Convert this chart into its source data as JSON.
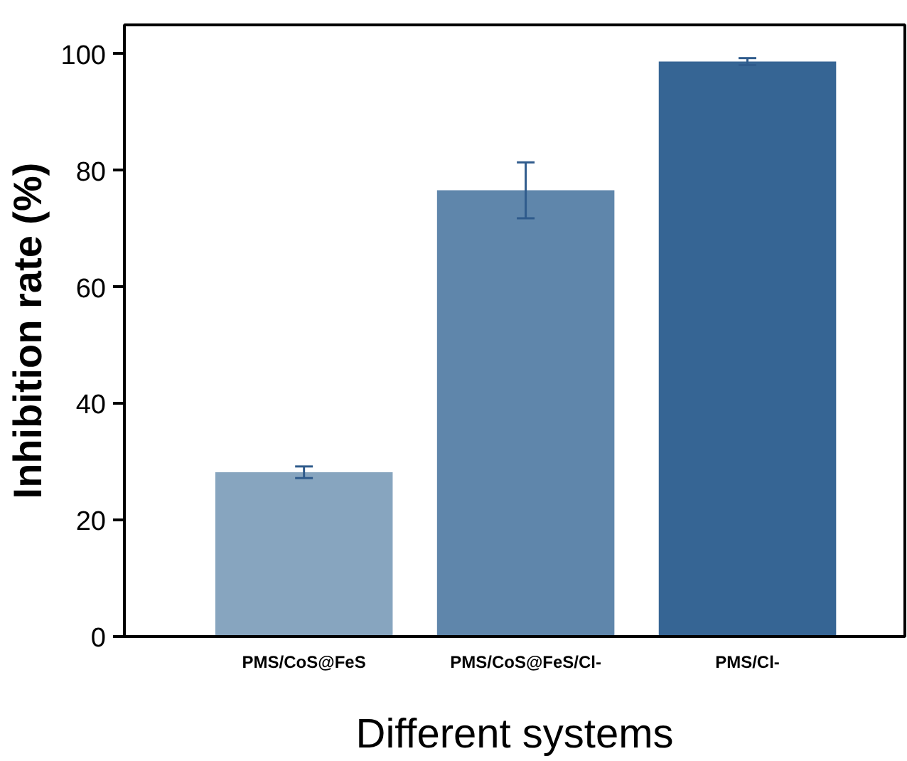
{
  "chart_data": {
    "type": "bar",
    "xlabel": "Different systems",
    "ylabel": "Inhibition rate (%)",
    "categories": [
      "PMS/CoS@FeS",
      "PMS/CoS@FeS/Cl-",
      "PMS/Cl-"
    ],
    "values": [
      28.2,
      76.6,
      98.7
    ],
    "colors": [
      "#87a5bf",
      "#5f86ab",
      "#366594"
    ],
    "errors": [
      1,
      4.8,
      0.6
    ],
    "ylim": [
      0,
      105
    ],
    "yticks": [
      0,
      20,
      40,
      60,
      80,
      100
    ],
    "grid": false
  }
}
